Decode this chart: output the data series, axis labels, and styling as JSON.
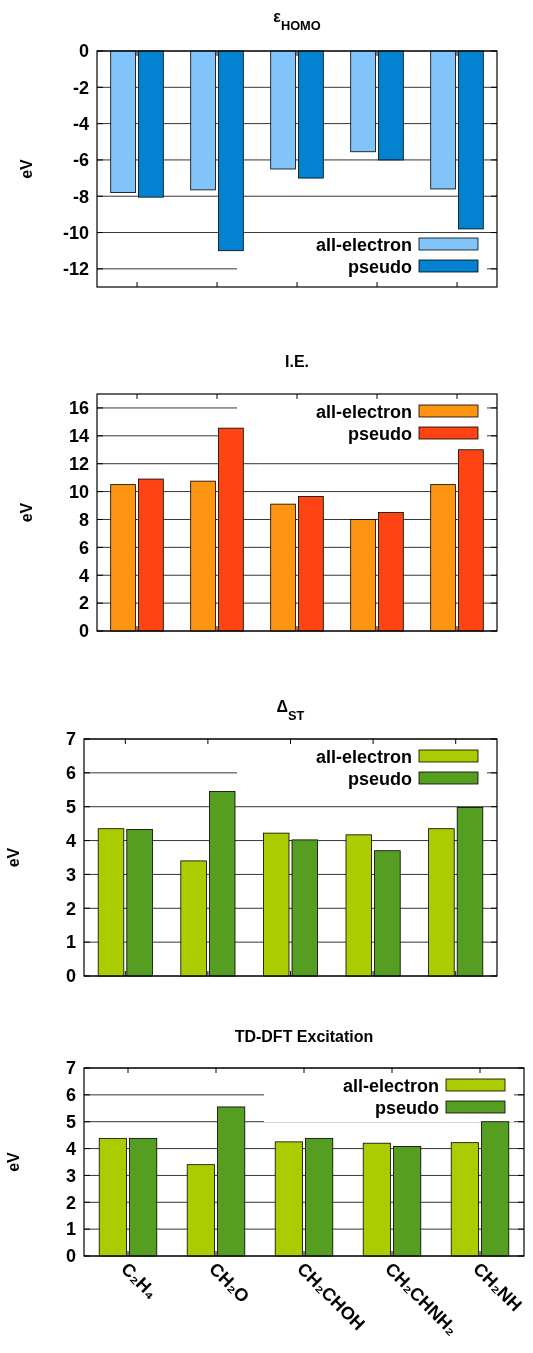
{
  "chart_data": [
    {
      "type": "bar",
      "title": "ε$_{HOMO}$",
      "ylabel": "eV",
      "categories": [
        null,
        null,
        null,
        null,
        null
      ],
      "series": [
        {
          "name": "all-electron",
          "color": "#80c4fa",
          "values": [
            -7.8,
            -7.65,
            -6.5,
            -5.55,
            -7.6
          ]
        },
        {
          "name": "pseudo",
          "color": "#0482d2",
          "values": [
            -8.05,
            -11,
            -7,
            -6,
            -9.8
          ]
        }
      ],
      "ylim": [
        -13,
        0
      ],
      "yticks": [
        0,
        -2,
        -4,
        -6,
        -8,
        -10,
        -12
      ],
      "grid": "y",
      "legend": "bottom right",
      "tick_labels": "y"
    },
    {
      "type": "bar",
      "title": "I.E.",
      "ylabel": "eV",
      "categories": [
        null,
        null,
        null,
        null,
        null
      ],
      "series": [
        {
          "name": "all-electron",
          "color": "#fd9412",
          "values": [
            10.5,
            10.75,
            9.1,
            8,
            10.5
          ]
        },
        {
          "name": "pseudo",
          "color": "#fd4412",
          "values": [
            10.9,
            14.55,
            9.65,
            8.5,
            13
          ]
        }
      ],
      "ylim": [
        0,
        17
      ],
      "yticks": [
        0,
        2,
        4,
        6,
        8,
        10,
        12,
        14,
        16
      ],
      "grid": "y",
      "legend": "top right",
      "tick_labels": "y"
    },
    {
      "type": "bar",
      "title": "Δ$_{ST}$",
      "ylabel": "eV",
      "categories": [
        null,
        null,
        null,
        null,
        null
      ],
      "series": [
        {
          "name": "all-electron",
          "color": "#accc02",
          "values": [
            4.35,
            3.4,
            4.22,
            4.17,
            4.35
          ]
        },
        {
          "name": "pseudo",
          "color": "#559e22",
          "values": [
            4.33,
            5.45,
            4.02,
            3.7,
            4.98
          ]
        }
      ],
      "ylim": [
        0,
        7
      ],
      "yticks": [
        0,
        1,
        2,
        3,
        4,
        5,
        6,
        7
      ],
      "grid": "y",
      "legend": "top right",
      "tick_labels": "y"
    },
    {
      "type": "bar",
      "title": "TD-DFT Excitation",
      "ylabel": "eV",
      "categories": [
        "C₂H₄",
        "CH₂O",
        "CH₂CHOH",
        "CH₂CHNH₂",
        "CH₂NH"
      ],
      "series": [
        {
          "name": "all-electron",
          "color": "#accc02",
          "values": [
            4.38,
            3.4,
            4.25,
            4.2,
            4.22
          ]
        },
        {
          "name": "pseudo",
          "color": "#559e22",
          "values": [
            4.38,
            5.55,
            4.38,
            4.08,
            5.0
          ]
        }
      ],
      "ylim": [
        0,
        7
      ],
      "yticks": [
        0,
        1,
        2,
        3,
        4,
        5,
        6,
        7
      ],
      "grid": "y",
      "legend": "top right"
    }
  ]
}
